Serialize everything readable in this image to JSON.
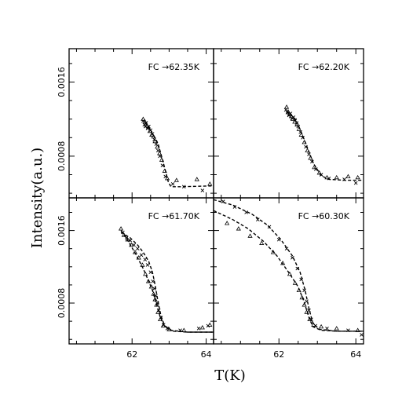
{
  "chart_data": [
    {
      "type": "scatter",
      "panel": "top-left",
      "annotation": "FC →62.35K",
      "xlim": [
        60.3,
        64.2
      ],
      "ylim": [
        0.00035,
        0.00196
      ],
      "x_ticks": [
        62,
        64
      ],
      "x_ticklabels": [
        "",
        ""
      ],
      "y_ticks": [
        0.0008,
        0.0016
      ],
      "y_ticklabels": [
        "0.0008",
        "0.0016"
      ],
      "fit_curves": [
        [
          [
            62.35,
            0.00116
          ],
          [
            62.5,
            0.00108
          ],
          [
            62.7,
            0.00094
          ],
          [
            62.85,
            0.00072
          ],
          [
            62.98,
            0.00052
          ],
          [
            63.05,
            0.00047
          ],
          [
            63.3,
            0.00047
          ],
          [
            64.2,
            0.00048
          ]
        ]
      ],
      "series": [
        {
          "marker": "x",
          "points": [
            [
              62.3,
              0.00118
            ],
            [
              62.33,
              0.00114
            ],
            [
              62.36,
              0.00112
            ],
            [
              62.38,
              0.00116
            ],
            [
              62.42,
              0.0011
            ],
            [
              62.45,
              0.00112
            ],
            [
              62.5,
              0.00108
            ],
            [
              62.55,
              0.00104
            ],
            [
              62.6,
              0.00098
            ],
            [
              62.65,
              0.00093
            ],
            [
              62.7,
              0.00086
            ],
            [
              62.75,
              0.0008
            ],
            [
              62.82,
              0.0007
            ],
            [
              62.9,
              0.00058
            ],
            [
              63.1,
              0.0005
            ],
            [
              63.4,
              0.00047
            ],
            [
              63.9,
              0.00043
            ]
          ]
        },
        {
          "marker": "triangle",
          "points": [
            [
              62.3,
              0.0012
            ],
            [
              62.35,
              0.00117
            ],
            [
              62.4,
              0.00113
            ],
            [
              62.44,
              0.00111
            ],
            [
              62.48,
              0.00107
            ],
            [
              62.53,
              0.00103
            ],
            [
              62.58,
              0.00101
            ],
            [
              62.62,
              0.00096
            ],
            [
              62.68,
              0.0009
            ],
            [
              62.74,
              0.00083
            ],
            [
              62.8,
              0.00076
            ],
            [
              62.88,
              0.00064
            ],
            [
              62.95,
              0.00056
            ],
            [
              63.2,
              0.00054
            ],
            [
              63.75,
              0.00055
            ],
            [
              64.1,
              0.0005
            ]
          ]
        }
      ]
    },
    {
      "type": "scatter",
      "panel": "top-right",
      "annotation": "FC →62.20K",
      "xlim": [
        60.3,
        64.2
      ],
      "ylim": [
        0.00035,
        0.00196
      ],
      "x_ticks": [
        62,
        64
      ],
      "x_ticklabels": [
        "",
        ""
      ],
      "y_ticks": [
        0.0008,
        0.0016
      ],
      "y_ticklabels": [
        "",
        ""
      ],
      "fit_curves": [
        [
          [
            62.2,
            0.00129
          ],
          [
            62.45,
            0.00119
          ],
          [
            62.6,
            0.00104
          ],
          [
            62.75,
            0.00088
          ],
          [
            62.9,
            0.00072
          ],
          [
            63.1,
            0.00059
          ],
          [
            63.3,
            0.00055
          ],
          [
            63.7,
            0.00054
          ],
          [
            64.2,
            0.00054
          ]
        ]
      ],
      "series": [
        {
          "marker": "x",
          "points": [
            [
              62.18,
              0.0013
            ],
            [
              62.22,
              0.00127
            ],
            [
              62.26,
              0.00124
            ],
            [
              62.3,
              0.00126
            ],
            [
              62.34,
              0.00121
            ],
            [
              62.38,
              0.00122
            ],
            [
              62.42,
              0.00119
            ],
            [
              62.46,
              0.00116
            ],
            [
              62.5,
              0.00112
            ],
            [
              62.56,
              0.00106
            ],
            [
              62.62,
              0.001
            ],
            [
              62.7,
              0.0009
            ],
            [
              62.78,
              0.00082
            ],
            [
              62.86,
              0.00074
            ],
            [
              62.96,
              0.00066
            ],
            [
              63.1,
              0.0006
            ],
            [
              63.3,
              0.00056
            ],
            [
              63.7,
              0.00055
            ],
            [
              64.0,
              0.00051
            ]
          ]
        },
        {
          "marker": "triangle",
          "points": [
            [
              62.2,
              0.00133
            ],
            [
              62.24,
              0.00128
            ],
            [
              62.28,
              0.00125
            ],
            [
              62.32,
              0.00123
            ],
            [
              62.36,
              0.0012
            ],
            [
              62.41,
              0.00117
            ],
            [
              62.47,
              0.00114
            ],
            [
              62.52,
              0.00109
            ],
            [
              62.58,
              0.00103
            ],
            [
              62.66,
              0.00095
            ],
            [
              62.74,
              0.00086
            ],
            [
              62.82,
              0.00078
            ],
            [
              62.92,
              0.00068
            ],
            [
              63.05,
              0.00062
            ],
            [
              63.25,
              0.00057
            ],
            [
              63.5,
              0.00057
            ],
            [
              63.8,
              0.00058
            ],
            [
              64.05,
              0.00057
            ]
          ]
        }
      ]
    },
    {
      "type": "scatter",
      "panel": "bottom-left",
      "annotation": "FC →61.70K",
      "xlim": [
        60.3,
        64.2
      ],
      "ylim": [
        0.00035,
        0.00196
      ],
      "x_ticks": [
        62,
        64
      ],
      "x_ticklabels": [
        "62",
        "64"
      ],
      "y_ticks": [
        0.0008,
        0.0016
      ],
      "y_ticklabels": [
        "0.0008",
        "0.0016"
      ],
      "fit_curves": [
        [
          [
            61.7,
            0.0016
          ],
          [
            61.9,
            0.00148
          ],
          [
            62.1,
            0.00134
          ],
          [
            62.3,
            0.00118
          ],
          [
            62.45,
            0.00104
          ],
          [
            62.55,
            0.00094
          ],
          [
            62.65,
            0.0008
          ],
          [
            62.75,
            0.00066
          ],
          [
            62.85,
            0.00056
          ],
          [
            63.05,
            0.0005
          ],
          [
            63.5,
            0.00048
          ],
          [
            64.2,
            0.00048
          ]
        ],
        [
          [
            61.7,
            0.00158
          ],
          [
            61.95,
            0.00152
          ],
          [
            62.15,
            0.00144
          ],
          [
            62.3,
            0.00136
          ],
          [
            62.45,
            0.00126
          ],
          [
            62.55,
            0.00114
          ],
          [
            62.62,
            0.001
          ],
          [
            62.7,
            0.00082
          ],
          [
            62.78,
            0.00066
          ],
          [
            62.88,
            0.00055
          ],
          [
            63.1,
            0.00049
          ],
          [
            63.5,
            0.00048
          ],
          [
            64.2,
            0.00048
          ]
        ]
      ],
      "series": [
        {
          "marker": "x",
          "points": [
            [
              61.75,
              0.00158
            ],
            [
              61.85,
              0.00152
            ],
            [
              61.95,
              0.00149
            ],
            [
              62.05,
              0.00144
            ],
            [
              62.15,
              0.0014
            ],
            [
              62.25,
              0.00133
            ],
            [
              62.35,
              0.00128
            ],
            [
              62.42,
              0.00122
            ],
            [
              62.5,
              0.00114
            ],
            [
              62.56,
              0.00104
            ],
            [
              62.6,
              0.00096
            ],
            [
              62.64,
              0.00088
            ],
            [
              62.68,
              0.0008
            ],
            [
              62.72,
              0.00072
            ],
            [
              62.78,
              0.00064
            ],
            [
              62.85,
              0.00056
            ],
            [
              62.95,
              0.00052
            ],
            [
              63.3,
              0.0005
            ],
            [
              63.8,
              0.00052
            ],
            [
              64.05,
              0.00055
            ]
          ]
        },
        {
          "marker": "triangle",
          "points": [
            [
              61.7,
              0.00162
            ],
            [
              61.78,
              0.00155
            ],
            [
              61.88,
              0.0015
            ],
            [
              61.98,
              0.00144
            ],
            [
              62.08,
              0.00136
            ],
            [
              62.18,
              0.0013
            ],
            [
              62.28,
              0.00122
            ],
            [
              62.36,
              0.00112
            ],
            [
              62.44,
              0.00104
            ],
            [
              62.52,
              0.00098
            ],
            [
              62.58,
              0.0009
            ],
            [
              62.62,
              0.00084
            ],
            [
              62.66,
              0.00078
            ],
            [
              62.7,
              0.0007
            ],
            [
              62.76,
              0.00062
            ],
            [
              62.84,
              0.00055
            ],
            [
              63.0,
              0.00051
            ],
            [
              63.4,
              0.0005
            ],
            [
              63.9,
              0.00053
            ],
            [
              64.1,
              0.00056
            ]
          ]
        }
      ]
    },
    {
      "type": "scatter",
      "panel": "bottom-right",
      "annotation": "FC →60.30K",
      "xlim": [
        60.3,
        64.2
      ],
      "ylim": [
        0.00035,
        0.00196
      ],
      "x_ticks": [
        62,
        64
      ],
      "x_ticklabels": [
        "62",
        "64"
      ],
      "y_ticks": [
        0.0008,
        0.0016
      ],
      "y_ticklabels": [
        "",
        ""
      ],
      "fit_curves": [
        [
          [
            60.3,
            0.00182
          ],
          [
            60.8,
            0.00172
          ],
          [
            61.2,
            0.00162
          ],
          [
            61.6,
            0.00148
          ],
          [
            61.95,
            0.00132
          ],
          [
            62.25,
            0.00114
          ],
          [
            62.5,
            0.00098
          ],
          [
            62.65,
            0.00082
          ],
          [
            62.78,
            0.00064
          ],
          [
            62.88,
            0.00054
          ],
          [
            63.1,
            0.0005
          ],
          [
            63.5,
            0.00049
          ],
          [
            64.2,
            0.00049
          ]
        ],
        [
          [
            60.3,
            0.00194
          ],
          [
            60.8,
            0.00188
          ],
          [
            61.3,
            0.00178
          ],
          [
            61.7,
            0.00166
          ],
          [
            62.05,
            0.0015
          ],
          [
            62.35,
            0.00132
          ],
          [
            62.55,
            0.00114
          ],
          [
            62.68,
            0.00094
          ],
          [
            62.78,
            0.00074
          ],
          [
            62.88,
            0.00058
          ],
          [
            63.05,
            0.00051
          ],
          [
            63.5,
            0.00049
          ],
          [
            64.2,
            0.00049
          ]
        ]
      ],
      "series": [
        {
          "marker": "x",
          "points": [
            [
              60.55,
              0.00192
            ],
            [
              60.85,
              0.00186
            ],
            [
              61.15,
              0.0018
            ],
            [
              61.45,
              0.00172
            ],
            [
              61.75,
              0.00164
            ],
            [
              62.0,
              0.0015
            ],
            [
              62.2,
              0.0014
            ],
            [
              62.35,
              0.0013
            ],
            [
              62.48,
              0.00118
            ],
            [
              62.58,
              0.00106
            ],
            [
              62.66,
              0.00094
            ],
            [
              62.72,
              0.00082
            ],
            [
              62.78,
              0.00072
            ],
            [
              62.84,
              0.00062
            ],
            [
              62.95,
              0.00055
            ],
            [
              63.25,
              0.00052
            ],
            [
              63.8,
              0.0005
            ],
            [
              64.15,
              0.00045
            ]
          ]
        },
        {
          "marker": "triangle",
          "points": [
            [
              60.65,
              0.00168
            ],
            [
              60.95,
              0.00162
            ],
            [
              61.25,
              0.00154
            ],
            [
              61.55,
              0.00146
            ],
            [
              61.85,
              0.00136
            ],
            [
              62.1,
              0.00124
            ],
            [
              62.28,
              0.00112
            ],
            [
              62.42,
              0.00102
            ],
            [
              62.52,
              0.00094
            ],
            [
              62.6,
              0.00086
            ],
            [
              62.66,
              0.00078
            ],
            [
              62.72,
              0.0007
            ],
            [
              62.8,
              0.00062
            ],
            [
              62.9,
              0.00056
            ],
            [
              63.1,
              0.00054
            ],
            [
              63.5,
              0.00052
            ],
            [
              64.05,
              0.0005
            ]
          ]
        }
      ]
    }
  ],
  "axes": {
    "xlabel": "T(K)",
    "ylabel": "Intensity(a.u.)"
  }
}
